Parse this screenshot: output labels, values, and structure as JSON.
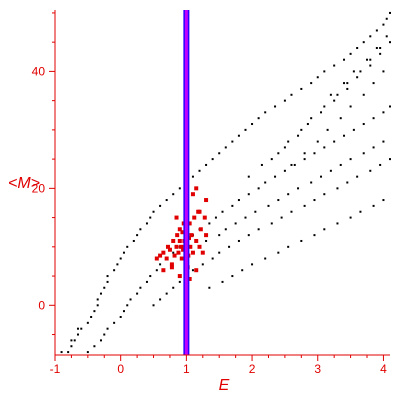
{
  "chart_data": {
    "type": "scatter",
    "title": "",
    "xlabel": "E",
    "ylabel": "<M>",
    "xlim": [
      -1,
      4.1
    ],
    "ylim": [
      -8.5,
      50.5
    ],
    "x_ticks": [
      -1,
      0,
      1,
      2,
      3,
      4
    ],
    "y_ticks": [
      0,
      20,
      40
    ],
    "grid": false,
    "colors": {
      "axes": "#e00000",
      "background_points": "#000000",
      "highlight_points": "#e00000",
      "vertical_line_outer": "#2a00ff",
      "vertical_line_inner": "#c000ff"
    },
    "vertical_line": {
      "x": 1.0
    },
    "series": [
      {
        "role": "background",
        "point_color": "#000000",
        "points": [
          [
            -0.9,
            -8
          ],
          [
            -0.8,
            -8
          ],
          [
            -0.75,
            -7
          ],
          [
            -0.75,
            -6
          ],
          [
            -0.7,
            -6
          ],
          [
            -0.65,
            -5
          ],
          [
            -0.65,
            -4
          ],
          [
            -0.6,
            -4
          ],
          [
            -0.5,
            -3
          ],
          [
            -0.45,
            -2
          ],
          [
            -0.4,
            -1
          ],
          [
            -0.35,
            0
          ],
          [
            -0.35,
            1
          ],
          [
            -0.3,
            2
          ],
          [
            -0.25,
            3
          ],
          [
            -0.2,
            4
          ],
          [
            -0.2,
            5
          ],
          [
            -0.1,
            6
          ],
          [
            -0.05,
            7
          ],
          [
            0.0,
            8
          ],
          [
            0.05,
            9
          ],
          [
            0.1,
            10
          ],
          [
            0.2,
            11
          ],
          [
            0.25,
            12
          ],
          [
            0.3,
            13
          ],
          [
            0.4,
            14
          ],
          [
            0.45,
            15
          ],
          [
            0.5,
            16
          ],
          [
            0.6,
            17
          ],
          [
            0.7,
            18
          ],
          [
            0.8,
            19
          ],
          [
            0.9,
            20
          ],
          [
            1.0,
            21
          ],
          [
            1.1,
            22
          ],
          [
            1.2,
            23
          ],
          [
            1.3,
            24
          ],
          [
            1.4,
            25
          ],
          [
            1.5,
            26
          ],
          [
            1.6,
            27
          ],
          [
            1.7,
            28
          ],
          [
            1.8,
            29
          ],
          [
            1.9,
            30
          ],
          [
            2.0,
            31
          ],
          [
            2.1,
            32
          ],
          [
            2.2,
            33
          ],
          [
            2.35,
            34
          ],
          [
            2.5,
            35
          ],
          [
            2.6,
            36
          ],
          [
            2.75,
            37
          ],
          [
            2.9,
            38
          ],
          [
            3.0,
            39
          ],
          [
            3.1,
            40
          ],
          [
            3.25,
            41
          ],
          [
            3.4,
            42
          ],
          [
            3.5,
            43
          ],
          [
            3.6,
            44
          ],
          [
            3.7,
            45
          ],
          [
            3.8,
            46
          ],
          [
            3.9,
            47
          ],
          [
            4.0,
            48
          ],
          [
            4.05,
            49
          ],
          [
            4.1,
            50
          ],
          [
            -0.5,
            -8
          ],
          [
            -0.4,
            -7
          ],
          [
            -0.3,
            -6
          ],
          [
            -0.25,
            -5
          ],
          [
            -0.2,
            -4
          ],
          [
            -0.1,
            -3
          ],
          [
            0.0,
            -2
          ],
          [
            0.05,
            -1
          ],
          [
            0.1,
            0
          ],
          [
            0.15,
            1
          ],
          [
            0.25,
            2
          ],
          [
            0.3,
            3
          ],
          [
            0.4,
            4
          ],
          [
            0.45,
            5
          ],
          [
            0.55,
            6
          ],
          [
            0.6,
            7
          ],
          [
            0.7,
            8
          ],
          [
            0.8,
            9
          ],
          [
            0.9,
            10
          ],
          [
            1.1,
            12
          ],
          [
            1.2,
            13
          ],
          [
            1.35,
            14
          ],
          [
            1.45,
            15
          ],
          [
            1.55,
            16
          ],
          [
            1.7,
            17
          ],
          [
            1.8,
            18
          ],
          [
            1.95,
            19
          ],
          [
            2.1,
            20
          ],
          [
            2.2,
            21
          ],
          [
            2.35,
            22
          ],
          [
            2.5,
            23
          ],
          [
            2.65,
            24
          ],
          [
            2.8,
            25
          ],
          [
            2.95,
            26
          ],
          [
            3.1,
            27
          ],
          [
            3.25,
            28
          ],
          [
            3.4,
            29
          ],
          [
            3.55,
            30
          ],
          [
            3.7,
            31
          ],
          [
            3.85,
            32
          ],
          [
            4.0,
            33
          ],
          [
            4.1,
            34
          ],
          [
            0.5,
            0
          ],
          [
            0.6,
            1
          ],
          [
            0.7,
            2
          ],
          [
            0.8,
            3
          ],
          [
            0.9,
            4
          ],
          [
            1.1,
            6
          ],
          [
            1.25,
            7
          ],
          [
            1.4,
            8
          ],
          [
            1.5,
            9
          ],
          [
            1.65,
            10
          ],
          [
            1.8,
            11
          ],
          [
            1.95,
            12
          ],
          [
            2.1,
            13
          ],
          [
            2.3,
            14
          ],
          [
            2.45,
            15
          ],
          [
            2.6,
            16
          ],
          [
            2.8,
            17
          ],
          [
            2.95,
            18
          ],
          [
            3.1,
            19
          ],
          [
            3.3,
            20
          ],
          [
            3.45,
            21
          ],
          [
            3.6,
            22
          ],
          [
            3.8,
            23
          ],
          [
            3.95,
            24
          ],
          [
            4.1,
            25
          ],
          [
            1.3,
            11
          ],
          [
            1.5,
            12
          ],
          [
            1.6,
            13
          ],
          [
            1.75,
            14
          ],
          [
            1.9,
            15
          ],
          [
            2.05,
            16
          ],
          [
            2.25,
            17
          ],
          [
            2.4,
            18
          ],
          [
            2.55,
            19
          ],
          [
            2.7,
            20
          ],
          [
            2.9,
            21
          ],
          [
            3.05,
            22
          ],
          [
            3.2,
            23
          ],
          [
            3.35,
            24
          ],
          [
            3.5,
            25
          ],
          [
            3.7,
            26
          ],
          [
            3.85,
            27
          ],
          [
            4.0,
            28
          ],
          [
            1.35,
            3
          ],
          [
            1.55,
            4
          ],
          [
            1.7,
            5
          ],
          [
            1.85,
            6
          ],
          [
            2.0,
            7
          ],
          [
            2.2,
            8
          ],
          [
            2.4,
            9
          ],
          [
            2.55,
            10
          ],
          [
            2.75,
            11
          ],
          [
            2.95,
            12
          ],
          [
            3.1,
            13
          ],
          [
            3.3,
            14
          ],
          [
            3.5,
            15
          ],
          [
            3.65,
            16
          ],
          [
            3.85,
            17
          ],
          [
            4.0,
            18
          ],
          [
            2.6,
            24
          ],
          [
            2.8,
            26
          ],
          [
            3.0,
            28
          ],
          [
            3.15,
            30
          ],
          [
            3.35,
            32
          ],
          [
            3.5,
            34
          ],
          [
            3.7,
            36
          ],
          [
            3.85,
            38
          ],
          [
            4.0,
            40
          ],
          [
            3.25,
            35
          ],
          [
            3.45,
            37
          ],
          [
            3.6,
            39
          ],
          [
            3.8,
            41
          ],
          [
            3.95,
            43
          ],
          [
            4.1,
            45
          ],
          [
            2.3,
            25
          ],
          [
            2.5,
            27
          ],
          [
            2.7,
            29
          ],
          [
            2.85,
            31
          ],
          [
            3.05,
            33
          ],
          [
            3.2,
            36
          ],
          [
            3.4,
            38
          ],
          [
            3.55,
            40
          ],
          [
            3.75,
            42
          ],
          [
            3.9,
            44
          ],
          [
            4.05,
            46
          ],
          [
            1.95,
            22
          ],
          [
            2.15,
            24
          ],
          [
            2.4,
            26
          ],
          [
            2.55,
            28
          ],
          [
            2.75,
            30
          ],
          [
            2.9,
            32
          ],
          [
            3.1,
            34
          ],
          [
            3.3,
            36
          ],
          [
            3.45,
            38
          ],
          [
            3.65,
            40
          ],
          [
            3.8,
            42
          ],
          [
            3.95,
            44
          ]
        ]
      },
      {
        "role": "highlight",
        "point_color": "#e00000",
        "points": [
          [
            0.55,
            8
          ],
          [
            0.6,
            8.5
          ],
          [
            0.65,
            9
          ],
          [
            0.7,
            8
          ],
          [
            0.72,
            10
          ],
          [
            0.75,
            9.5
          ],
          [
            0.78,
            7
          ],
          [
            0.8,
            11
          ],
          [
            0.82,
            8.5
          ],
          [
            0.85,
            10
          ],
          [
            0.86,
            12
          ],
          [
            0.88,
            9
          ],
          [
            0.9,
            11
          ],
          [
            0.9,
            13
          ],
          [
            0.92,
            10
          ],
          [
            0.93,
            8
          ],
          [
            0.94,
            12.5
          ],
          [
            0.95,
            9.5
          ],
          [
            0.96,
            14
          ],
          [
            0.97,
            11
          ],
          [
            0.98,
            10
          ],
          [
            0.99,
            12
          ],
          [
            1.0,
            9
          ],
          [
            1.0,
            11
          ],
          [
            1.0,
            13
          ],
          [
            1.01,
            10.5
          ],
          [
            1.02,
            12
          ],
          [
            1.03,
            8.5
          ],
          [
            1.04,
            11.5
          ],
          [
            1.05,
            14
          ],
          [
            1.06,
            10
          ],
          [
            1.08,
            12
          ],
          [
            1.1,
            9
          ],
          [
            1.12,
            15
          ],
          [
            1.15,
            11
          ],
          [
            1.18,
            16
          ],
          [
            1.2,
            10
          ],
          [
            1.22,
            13
          ],
          [
            1.25,
            9
          ],
          [
            1.28,
            15
          ],
          [
            1.3,
            12
          ],
          [
            1.3,
            18
          ],
          [
            0.85,
            15
          ],
          [
            1.1,
            19
          ],
          [
            1.15,
            20
          ],
          [
            1.2,
            16
          ],
          [
            0.65,
            6
          ],
          [
            0.78,
            6.5
          ],
          [
            1.02,
            6.5
          ],
          [
            1.15,
            6
          ],
          [
            0.9,
            5
          ],
          [
            1.05,
            4.5
          ]
        ]
      }
    ]
  }
}
